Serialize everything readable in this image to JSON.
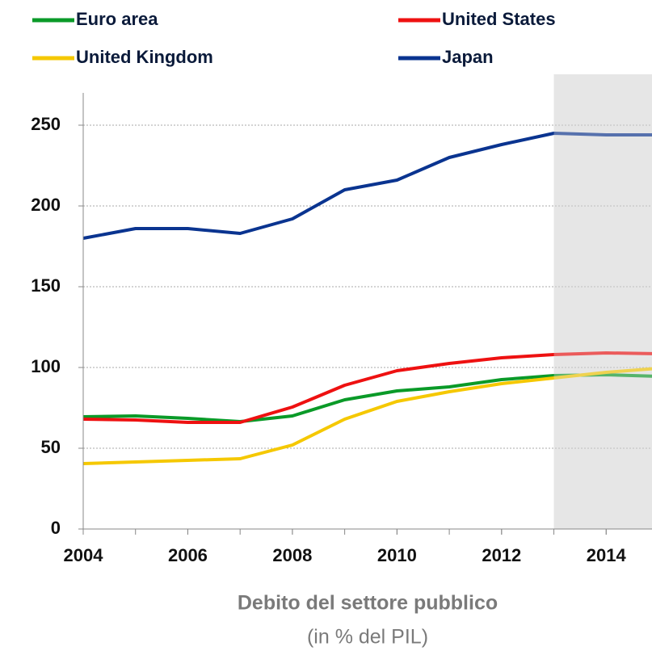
{
  "chart_data": {
    "type": "line",
    "title": "Debito del settore pubblico",
    "subtitle": "(in % del PIL)",
    "x": [
      2004,
      2005,
      2006,
      2007,
      2008,
      2009,
      2010,
      2011,
      2012,
      2013,
      2014,
      2015
    ],
    "series": [
      {
        "name": "Euro area",
        "color": "#0a9a28",
        "values": [
          69.5,
          70,
          68.5,
          66.5,
          70,
          80,
          85.5,
          88,
          92.5,
          95,
          95.5,
          94.5
        ]
      },
      {
        "name": "United States",
        "color": "#ee1111",
        "values": [
          68,
          67.5,
          66,
          66,
          75.5,
          89,
          98,
          102.5,
          106,
          108,
          109,
          108.5
        ]
      },
      {
        "name": "United Kingdom",
        "color": "#f5c800",
        "values": [
          40.5,
          41.5,
          42.5,
          43.5,
          52,
          68,
          79,
          85,
          90,
          93.5,
          97,
          99.5
        ]
      },
      {
        "name": "Japan",
        "color": "#0a3490",
        "values": [
          180,
          186,
          186,
          183,
          192,
          210,
          216,
          230,
          238,
          245,
          244,
          244
        ]
      }
    ],
    "xlim": [
      2004,
      2015
    ],
    "xticks": [
      2004,
      2006,
      2008,
      2010,
      2012,
      2014
    ],
    "ylim": [
      0,
      270
    ],
    "yticks": [
      0,
      50,
      100,
      150,
      200,
      250
    ],
    "grid": true,
    "shaded_from": 2013
  }
}
